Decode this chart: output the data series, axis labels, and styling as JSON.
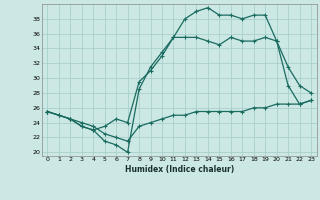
{
  "xlabel": "Humidex (Indice chaleur)",
  "bg_color": "#cce8e4",
  "grid_color": "#aacfcb",
  "line_color": "#1a6b60",
  "xlim": [
    -0.5,
    23.5
  ],
  "ylim": [
    19.5,
    40.0
  ],
  "yticks": [
    20,
    22,
    24,
    26,
    28,
    30,
    32,
    34,
    36,
    38
  ],
  "xticks": [
    0,
    1,
    2,
    3,
    4,
    5,
    6,
    7,
    8,
    9,
    10,
    11,
    12,
    13,
    14,
    15,
    16,
    17,
    18,
    19,
    20,
    21,
    22,
    23
  ],
  "line1_x": [
    0,
    1,
    2,
    3,
    4,
    5,
    6,
    7,
    8,
    9,
    10,
    11,
    12,
    13,
    14,
    15,
    16,
    17,
    18,
    19,
    20,
    21,
    22,
    23
  ],
  "line1_y": [
    25.5,
    25.0,
    24.5,
    23.5,
    23.0,
    21.5,
    21.0,
    20.0,
    28.5,
    31.5,
    33.5,
    35.5,
    38.0,
    39.0,
    39.5,
    38.5,
    38.5,
    38.0,
    38.5,
    38.5,
    35.0,
    29.0,
    26.5,
    27.0
  ],
  "line2_x": [
    0,
    2,
    3,
    4,
    5,
    6,
    7,
    8,
    9,
    10,
    11,
    12,
    13,
    14,
    15,
    16,
    17,
    18,
    19,
    20,
    21,
    22,
    23
  ],
  "line2_y": [
    25.5,
    24.5,
    23.5,
    23.0,
    23.5,
    24.5,
    24.0,
    29.5,
    31.0,
    33.0,
    35.5,
    35.5,
    35.5,
    35.0,
    34.5,
    35.5,
    35.0,
    35.0,
    35.5,
    35.0,
    31.5,
    29.0,
    28.0
  ],
  "line3_x": [
    0,
    1,
    2,
    3,
    4,
    5,
    6,
    7,
    8,
    9,
    10,
    11,
    12,
    13,
    14,
    15,
    16,
    17,
    18,
    19,
    20,
    21,
    22,
    23
  ],
  "line3_y": [
    25.5,
    25.0,
    24.5,
    24.0,
    23.5,
    22.5,
    22.0,
    21.5,
    23.5,
    24.0,
    24.5,
    25.0,
    25.0,
    25.5,
    25.5,
    25.5,
    25.5,
    25.5,
    26.0,
    26.0,
    26.5,
    26.5,
    26.5,
    27.0
  ]
}
